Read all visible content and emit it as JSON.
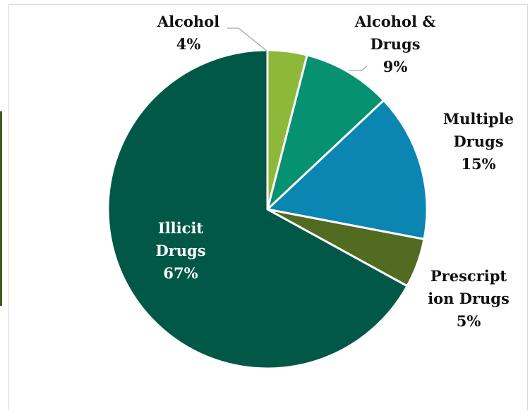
{
  "chart_data": {
    "type": "pie",
    "title": "",
    "series": [
      {
        "slices": [
          {
            "lines": [
              "Alcohol"
            ],
            "pct_label": "4%",
            "value": 4,
            "color": "#8db83a",
            "label_color": "#111111"
          },
          {
            "lines": [
              "Alcohol &",
              "Drugs"
            ],
            "pct_label": "9%",
            "value": 9,
            "color": "#069171",
            "label_color": "#111111"
          },
          {
            "lines": [
              "Multiple",
              "Drugs"
            ],
            "pct_label": "15%",
            "value": 15,
            "color": "#0b86b2",
            "label_color": "#111111"
          },
          {
            "lines": [
              "Prescript",
              "ion Drugs"
            ],
            "pct_label": "5%",
            "value": 5,
            "color": "#516b21",
            "label_color": "#111111"
          },
          {
            "lines": [
              "Illicit",
              "Drugs"
            ],
            "pct_label": "67%",
            "value": 67,
            "color": "#025847",
            "label_color": "#ffffff"
          }
        ]
      }
    ],
    "start_angle_deg": 0,
    "direction": "clockwise",
    "slice_border_color": "#ffffff",
    "leader_line_color": "#a6a6a6"
  }
}
